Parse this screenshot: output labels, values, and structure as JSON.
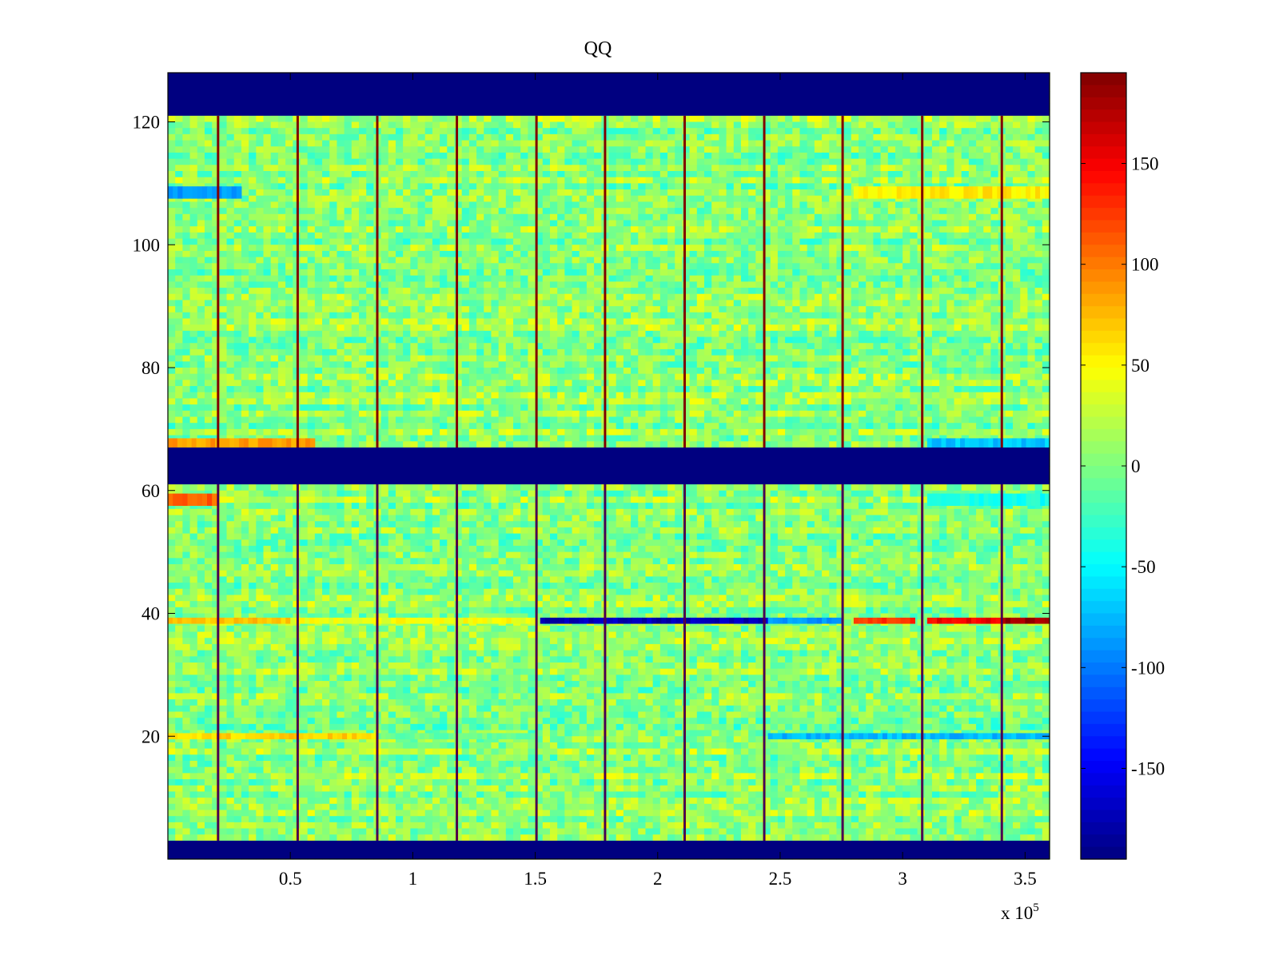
{
  "chart_data": {
    "type": "heatmap",
    "title": "QQ",
    "xlabel": "",
    "ylabel": "",
    "x_exponent_label": "x 10",
    "x_exponent": "5",
    "xlim": [
      0,
      3.6
    ],
    "ylim": [
      0,
      128
    ],
    "x_ticks": [
      0.5,
      1,
      1.5,
      2,
      2.5,
      3,
      3.5
    ],
    "x_tick_labels": [
      "0.5",
      "1",
      "1.5",
      "2",
      "2.5",
      "3",
      "3.5"
    ],
    "y_ticks": [
      20,
      40,
      60,
      80,
      100,
      120
    ],
    "y_tick_labels": [
      "20",
      "40",
      "60",
      "80",
      "100",
      "120"
    ],
    "clim": [
      -195,
      195
    ],
    "colormap": "jet",
    "colorbar": {
      "ticks": [
        150,
        100,
        50,
        0,
        -50,
        -100,
        -150
      ],
      "tick_labels": [
        "150",
        "100",
        "50",
        "0",
        "-50",
        "-100",
        "-150"
      ]
    },
    "background_value": 5,
    "saturated_rows": [
      {
        "y_range": [
          0,
          3
        ],
        "value": -195
      },
      {
        "y_range": [
          61,
          67
        ],
        "value": -195
      },
      {
        "y_range": [
          121,
          128
        ],
        "value": -195
      }
    ],
    "separator_columns_x": [
      0.205,
      0.53,
      0.855,
      1.18,
      1.505,
      1.785,
      2.11,
      2.435,
      2.755,
      3.08,
      3.405
    ],
    "separator_value_top": 195,
    "separator_value_bottom": -170,
    "row_bands": [
      {
        "y_range": [
          38.3,
          39.3
        ],
        "segments": [
          {
            "x": [
              0.0,
              0.5
            ],
            "value": 70
          },
          {
            "x": [
              0.5,
              1.5
            ],
            "value": 45
          },
          {
            "x": [
              1.52,
              2.45
            ],
            "value": -175
          },
          {
            "x": [
              2.45,
              2.75
            ],
            "value": -90
          },
          {
            "x": [
              2.8,
              3.05
            ],
            "value": 125
          },
          {
            "x": [
              3.1,
              3.4
            ],
            "value": 150
          },
          {
            "x": [
              3.4,
              3.6
            ],
            "value": 185
          }
        ]
      },
      {
        "y_range": [
          19.5,
          20.5
        ],
        "segments": [
          {
            "x": [
              0.0,
              0.85
            ],
            "value": 65
          },
          {
            "x": [
              0.85,
              1.5
            ],
            "value": -10
          },
          {
            "x": [
              2.45,
              3.6
            ],
            "value": -75
          }
        ]
      },
      {
        "y_range": [
          57.5,
          59.5
        ],
        "segments": [
          {
            "x": [
              0.0,
              0.2
            ],
            "value": 110
          },
          {
            "x": [
              3.1,
              3.6
            ],
            "value": -40
          }
        ]
      },
      {
        "y_range": [
          107.5,
          109.5
        ],
        "segments": [
          {
            "x": [
              0.0,
              0.3
            ],
            "value": -85
          },
          {
            "x": [
              2.8,
              3.6
            ],
            "value": 55
          }
        ]
      },
      {
        "y_range": [
          67,
          68.5
        ],
        "segments": [
          {
            "x": [
              0.0,
              0.6
            ],
            "value": 85
          },
          {
            "x": [
              3.1,
              3.6
            ],
            "value": -70
          }
        ]
      }
    ]
  }
}
